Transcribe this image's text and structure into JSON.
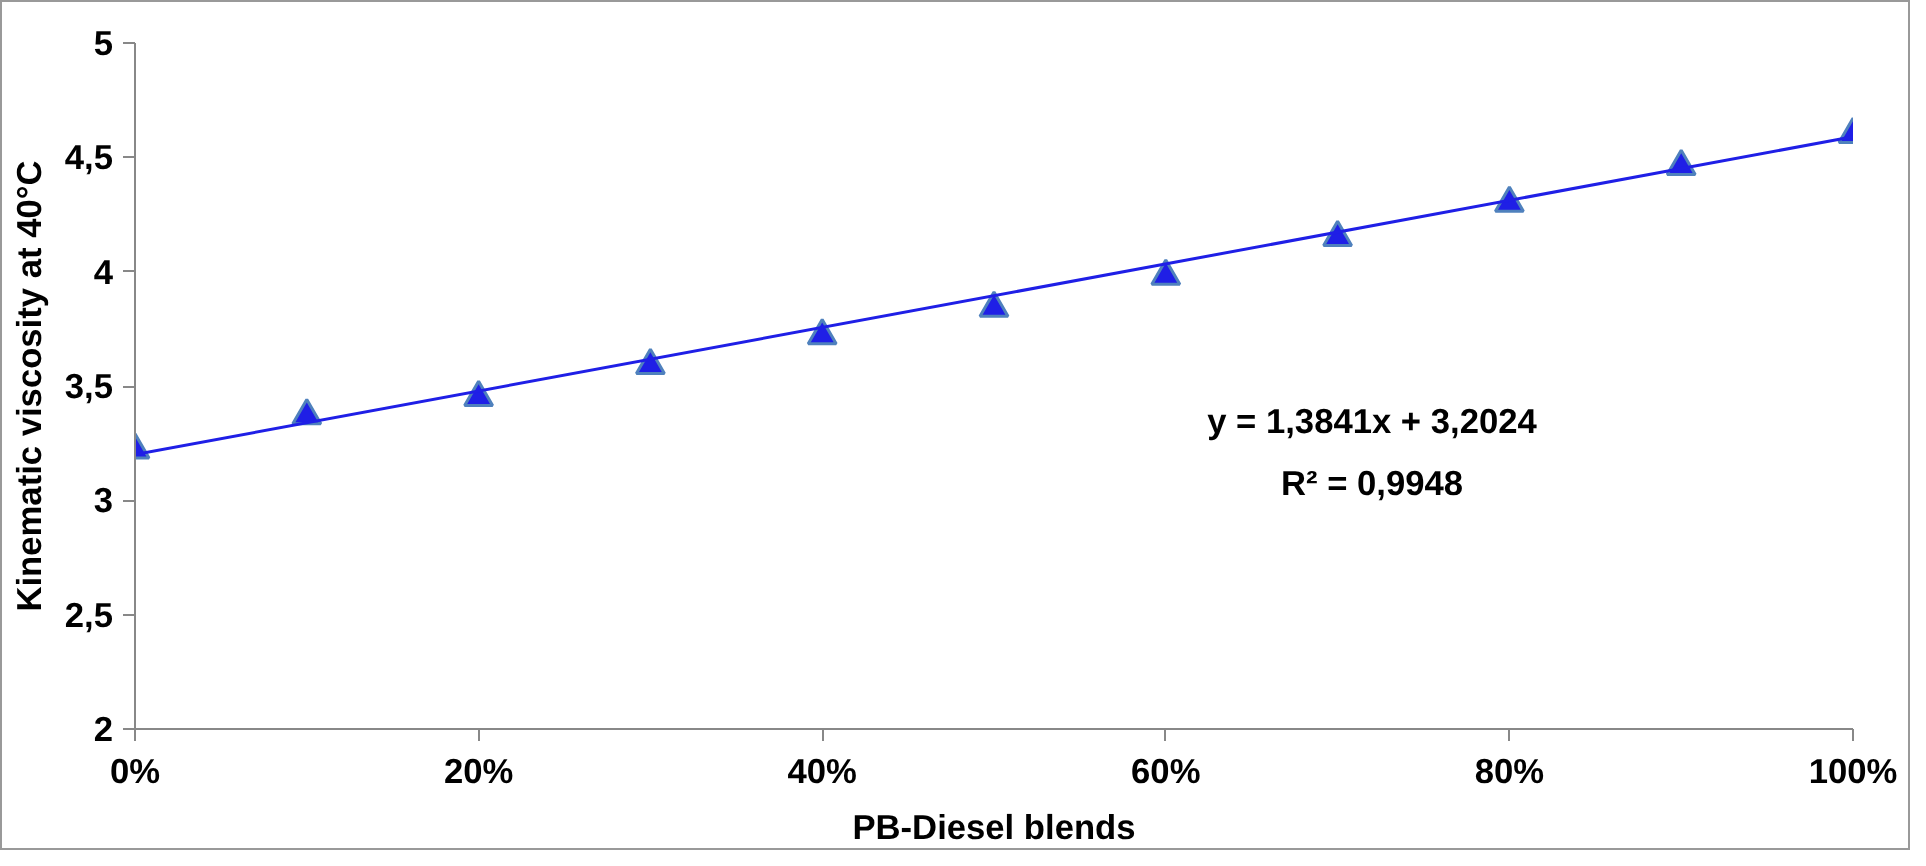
{
  "chart_data": {
    "type": "scatter",
    "xlabel": "PB-Diesel blends",
    "ylabel": "Kinematic viscosity at 40°C",
    "x": [
      0,
      10,
      20,
      30,
      40,
      50,
      60,
      70,
      80,
      90,
      100
    ],
    "series": [
      {
        "color": "#1f1fe6",
        "marker": "triangle",
        "values": [
          3.22,
          3.37,
          3.45,
          3.59,
          3.72,
          3.84,
          3.98,
          4.15,
          4.3,
          4.46,
          4.6
        ]
      },
      {
        "type": "line",
        "color": "#1f1fe6",
        "x": [
          0,
          100
        ],
        "values": [
          3.2,
          4.59
        ]
      }
    ],
    "xlim": [
      0,
      100
    ],
    "xticks": [
      {
        "value": 0,
        "label": "0%"
      },
      {
        "value": 20,
        "label": "20%"
      },
      {
        "value": 40,
        "label": "40%"
      },
      {
        "value": 60,
        "label": "60%"
      },
      {
        "value": 80,
        "label": "80%"
      },
      {
        "value": 100,
        "label": "100%"
      }
    ],
    "ylim": [
      2,
      5
    ],
    "yticks": [
      2,
      {
        "value": 2.5,
        "label": "2,5"
      },
      3,
      {
        "value": 3.5,
        "label": "3,5"
      },
      4,
      {
        "value": 4.5,
        "label": "4,5"
      },
      5
    ],
    "annotations": [
      "y = 1,3841x + 3,2024",
      "R² = 0,9948"
    ],
    "grid": false
  }
}
